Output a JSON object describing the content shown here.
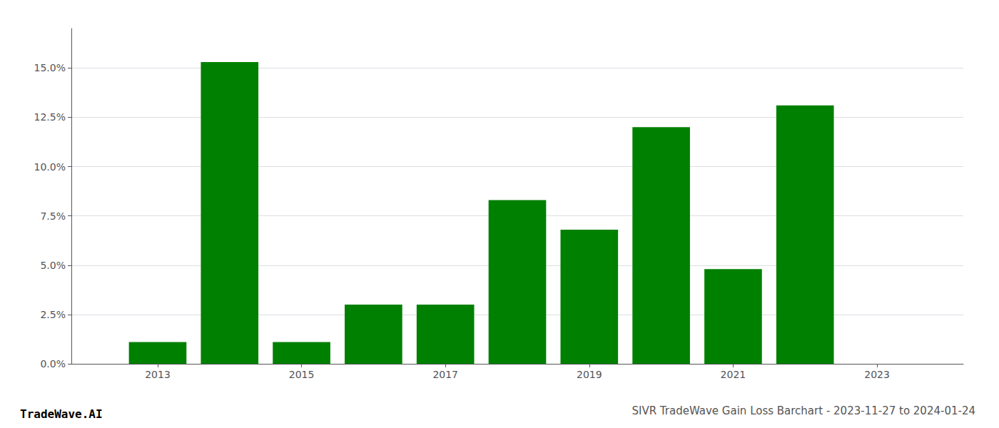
{
  "chart_data": {
    "type": "bar",
    "title": "SIVR TradeWave Gain Loss Barchart - 2023-11-27 to 2024-01-24",
    "annotations": [
      "TradeWave.AI"
    ],
    "x": [
      2013,
      2014,
      2015,
      2016,
      2017,
      2018,
      2019,
      2020,
      2021,
      2022
    ],
    "values": [
      0.011,
      0.153,
      0.011,
      0.03,
      0.03,
      0.083,
      0.068,
      0.12,
      0.048,
      0.131
    ],
    "color": "#008000",
    "xlim": [
      2011.8,
      2024.2
    ],
    "xticks": [
      2013,
      2015,
      2017,
      2019,
      2021,
      2023
    ],
    "ylim": [
      0,
      0.17
    ],
    "yticks": [
      {
        "value": 0.0,
        "label": "0.0%"
      },
      {
        "value": 0.025,
        "label": "2.5%"
      },
      {
        "value": 0.05,
        "label": "5.0%"
      },
      {
        "value": 0.075,
        "label": "7.5%"
      },
      {
        "value": 0.1,
        "label": "10.0%"
      },
      {
        "value": 0.125,
        "label": "12.5%"
      },
      {
        "value": 0.15,
        "label": "15.0%"
      }
    ],
    "grid": true
  }
}
